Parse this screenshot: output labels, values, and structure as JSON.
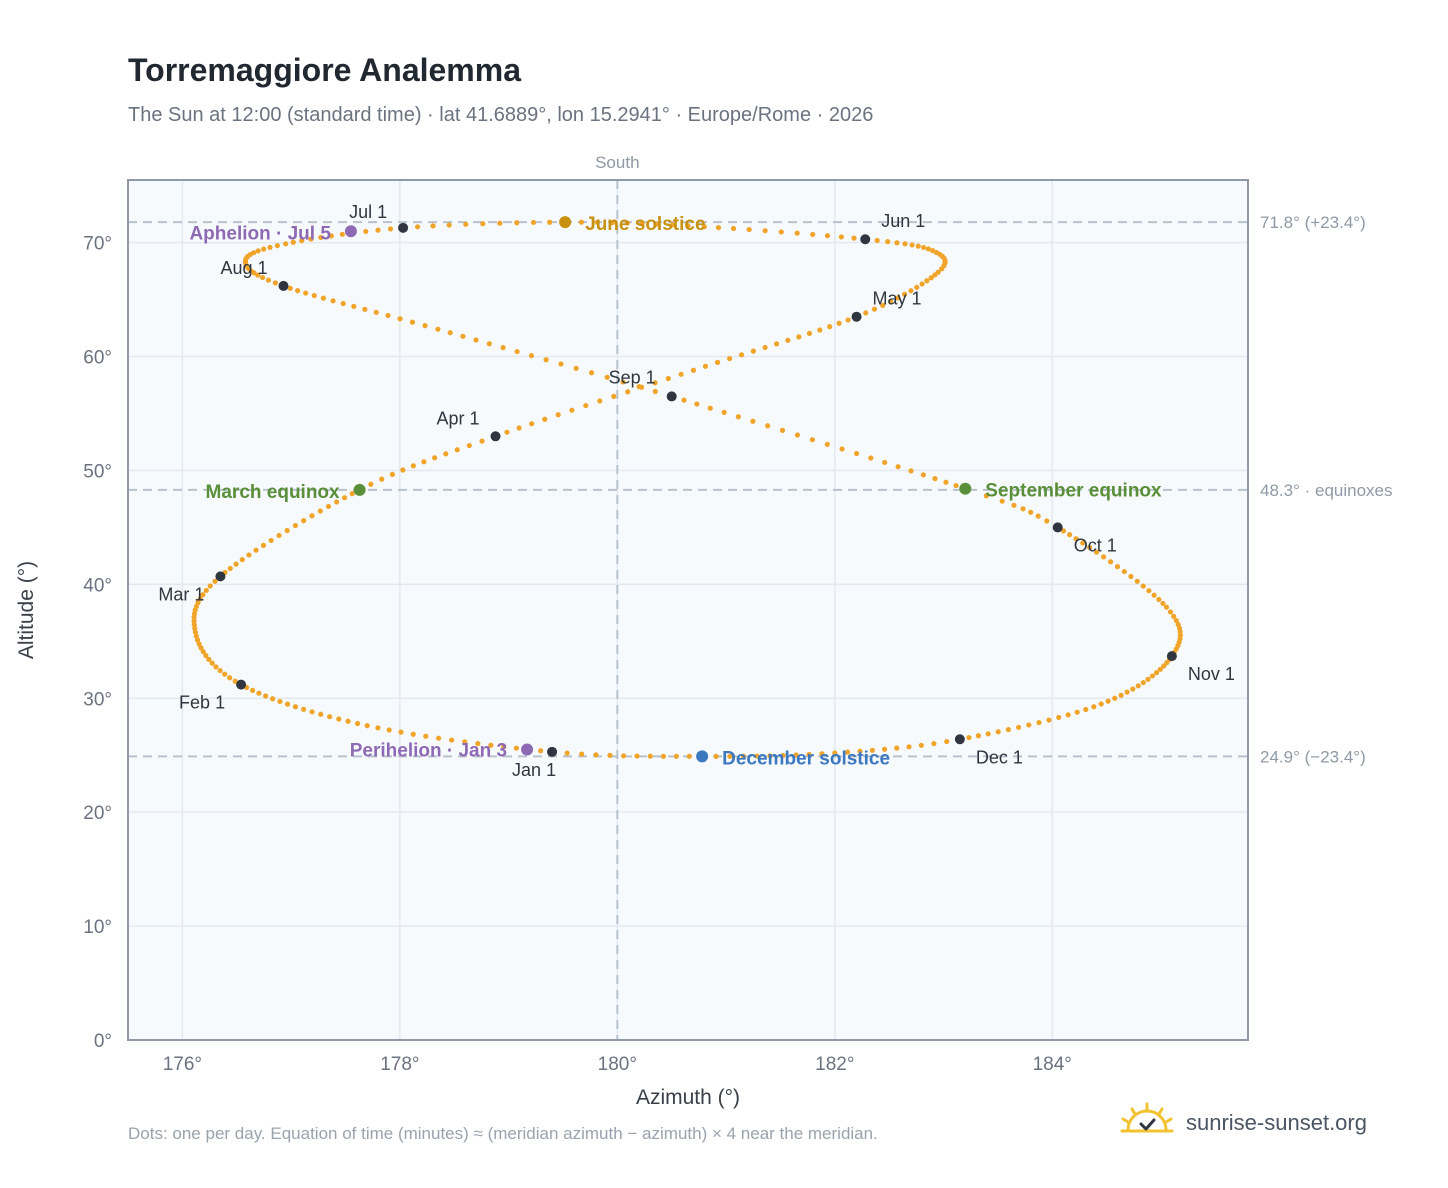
{
  "title": "Torremaggiore Analemma",
  "subtitle": "The Sun at 12:00 (standard time) · lat 41.6889°, lon 15.2941° · Europe/Rome · 2026",
  "footnote": "Dots: one per day. Equation of time (minutes) ≈ (meridian azimuth − azimuth) × 4 near the meridian.",
  "brand": {
    "name": "sunrise-sunset.org",
    "icon": "sun-check-icon"
  },
  "chart_data": {
    "type": "scatter",
    "xlabel": "Azimuth (°)",
    "ylabel": "Altitude (°)",
    "xlim": [
      175.5,
      185.8
    ],
    "ylim": [
      0,
      75.5
    ],
    "xticks": [
      176,
      178,
      180,
      182,
      184
    ],
    "yticks": [
      0,
      10,
      20,
      30,
      40,
      50,
      60,
      70
    ],
    "tick_suffix": "°",
    "grid": true,
    "meridian": {
      "x": 180,
      "label": "South"
    },
    "reference_lines": [
      {
        "y": 71.8,
        "label": "71.8° (+23.4°)"
      },
      {
        "y": 48.3,
        "label": "48.3° · equinoxes"
      },
      {
        "y": 24.9,
        "label": "24.9° (−23.4°)"
      }
    ],
    "month_markers": [
      {
        "label": "Jan 1",
        "az": 179.4,
        "alt": 25.3
      },
      {
        "label": "Feb 1",
        "az": 176.54,
        "alt": 31.2
      },
      {
        "label": "Mar 1",
        "az": 176.35,
        "alt": 40.7
      },
      {
        "label": "Apr 1",
        "az": 178.88,
        "alt": 53.0
      },
      {
        "label": "May 1",
        "az": 182.2,
        "alt": 63.5
      },
      {
        "label": "Jun 1",
        "az": 182.28,
        "alt": 70.3
      },
      {
        "label": "Jul 1",
        "az": 178.03,
        "alt": 71.3
      },
      {
        "label": "Aug 1",
        "az": 176.93,
        "alt": 66.2
      },
      {
        "label": "Sep 1",
        "az": 180.5,
        "alt": 56.5
      },
      {
        "label": "Oct 1",
        "az": 184.05,
        "alt": 45.0
      },
      {
        "label": "Nov 1",
        "az": 185.1,
        "alt": 33.7
      },
      {
        "label": "Dec 1",
        "az": 183.15,
        "alt": 26.4
      }
    ],
    "events": [
      {
        "label": "Perihelion · Jan 3",
        "az": 179.17,
        "alt": 25.5,
        "color": "#8e6ab5"
      },
      {
        "label": "March equinox",
        "az": 177.63,
        "alt": 48.3,
        "color": "#5a8f3a"
      },
      {
        "label": "June solstice",
        "az": 179.52,
        "alt": 71.8,
        "color": "#c8900f"
      },
      {
        "label": "Aphelion · Jul 5",
        "az": 177.55,
        "alt": 71.0,
        "color": "#8e6ab5"
      },
      {
        "label": "September equinox",
        "az": 183.2,
        "alt": 48.4,
        "color": "#5a8f3a"
      },
      {
        "label": "December solstice",
        "az": 180.78,
        "alt": 24.9,
        "color": "#3b78c0"
      }
    ],
    "path_anchors": [
      {
        "doy": 1,
        "az": 179.4,
        "alt": 25.3
      },
      {
        "doy": 16,
        "az": 177.7,
        "alt": 27.6
      },
      {
        "doy": 32,
        "az": 176.54,
        "alt": 31.2
      },
      {
        "doy": 46,
        "az": 176.12,
        "alt": 35.8
      },
      {
        "doy": 60,
        "az": 176.35,
        "alt": 40.7
      },
      {
        "doy": 79,
        "az": 177.63,
        "alt": 48.3
      },
      {
        "doy": 91,
        "az": 178.88,
        "alt": 53.0
      },
      {
        "doy": 106,
        "az": 180.7,
        "alt": 58.8
      },
      {
        "doy": 121,
        "az": 182.2,
        "alt": 63.5
      },
      {
        "doy": 134,
        "az": 182.95,
        "alt": 67.4
      },
      {
        "doy": 143,
        "az": 182.9,
        "alt": 69.3
      },
      {
        "doy": 152,
        "az": 182.28,
        "alt": 70.3
      },
      {
        "doy": 163,
        "az": 180.8,
        "alt": 71.4
      },
      {
        "doy": 172,
        "az": 179.52,
        "alt": 71.8
      },
      {
        "doy": 182,
        "az": 178.03,
        "alt": 71.3
      },
      {
        "doy": 193,
        "az": 176.95,
        "alt": 69.9
      },
      {
        "doy": 202,
        "az": 176.58,
        "alt": 68.4
      },
      {
        "doy": 213,
        "az": 176.93,
        "alt": 66.2
      },
      {
        "doy": 228,
        "az": 178.35,
        "alt": 62.4
      },
      {
        "doy": 244,
        "az": 180.5,
        "alt": 56.5
      },
      {
        "doy": 266,
        "az": 183.2,
        "alt": 48.4
      },
      {
        "doy": 274,
        "az": 184.05,
        "alt": 45.0
      },
      {
        "doy": 292,
        "az": 185.05,
        "alt": 38.0
      },
      {
        "doy": 305,
        "az": 185.1,
        "alt": 33.7
      },
      {
        "doy": 320,
        "az": 184.45,
        "alt": 29.5
      },
      {
        "doy": 335,
        "az": 183.15,
        "alt": 26.4
      },
      {
        "doy": 345,
        "az": 182.0,
        "alt": 25.2
      },
      {
        "doy": 355,
        "az": 180.78,
        "alt": 24.9
      },
      {
        "doy": 366,
        "az": 179.4,
        "alt": 25.3
      }
    ],
    "colors": {
      "path": "#f0a52a",
      "month_marker": "#2f3640",
      "plot_bg": "#f7fafd",
      "grid": "#e3e9ef",
      "frame": "#8f9aa6",
      "reference": "#b8c2cc"
    }
  }
}
